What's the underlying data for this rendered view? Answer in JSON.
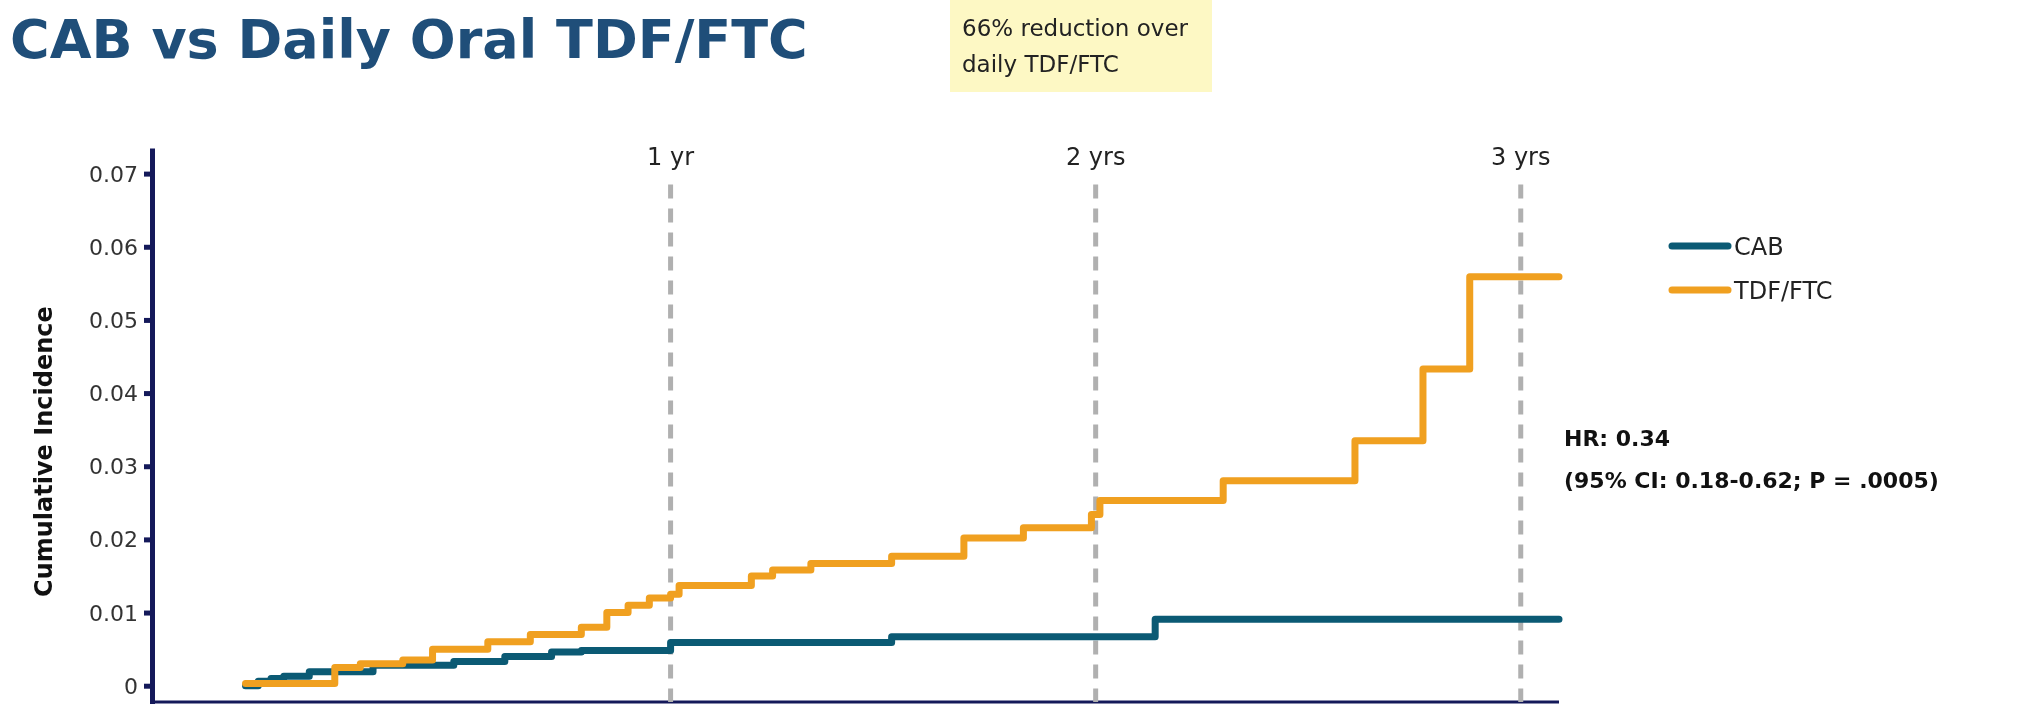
{
  "chart_data": {
    "type": "step",
    "title": "CAB vs Daily Oral TDF/FTC",
    "ylabel": "Cumulative Incidence",
    "ylim": [
      -0.0025,
      0.0735
    ],
    "yticks": [
      0,
      0.01,
      0.02,
      0.03,
      0.04,
      0.05,
      0.06,
      0.07
    ],
    "xlim": [
      -0.22,
      3.09
    ],
    "xticks": [
      {
        "value": 1,
        "label": "1 yr"
      },
      {
        "value": 2,
        "label": "2 yrs"
      },
      {
        "value": 3,
        "label": "3 yrs"
      }
    ],
    "grid": "x",
    "legend": "right",
    "line_style": "solid",
    "series": [
      {
        "name": "CAB",
        "color": "#0b5a74",
        "x": [
          0,
          0.03,
          0.06,
          0.09,
          0.15,
          0.3,
          0.49,
          0.61,
          0.72,
          0.79,
          1.0,
          1.52,
          2.14,
          3.09
        ],
        "values": [
          0,
          0.0006,
          0.001,
          0.0013,
          0.0019,
          0.0028,
          0.0033,
          0.004,
          0.0046,
          0.0048,
          0.0059,
          0.0067,
          0.0091,
          0.0091
        ]
      },
      {
        "name": "TDF/FTC",
        "color": "#f0a020",
        "x": [
          0,
          0.21,
          0.27,
          0.37,
          0.44,
          0.57,
          0.67,
          0.79,
          0.85,
          0.9,
          0.95,
          1.0,
          1.02,
          1.19,
          1.24,
          1.33,
          1.52,
          1.69,
          1.83,
          1.99,
          2.01,
          2.3,
          2.61,
          2.77,
          2.88,
          3.09
        ],
        "values": [
          0.0003,
          0.0025,
          0.003,
          0.0035,
          0.005,
          0.006,
          0.007,
          0.008,
          0.01,
          0.011,
          0.012,
          0.0125,
          0.0137,
          0.015,
          0.0158,
          0.0167,
          0.0177,
          0.0202,
          0.0216,
          0.0234,
          0.0253,
          0.028,
          0.0335,
          0.0433,
          0.0559,
          0.0559
        ]
      }
    ],
    "annotations": [
      "66% reduction over daily TDF/FTC",
      "HR: 0.34",
      "(95% CI: 0.18-0.62; P = .0005)"
    ]
  }
}
